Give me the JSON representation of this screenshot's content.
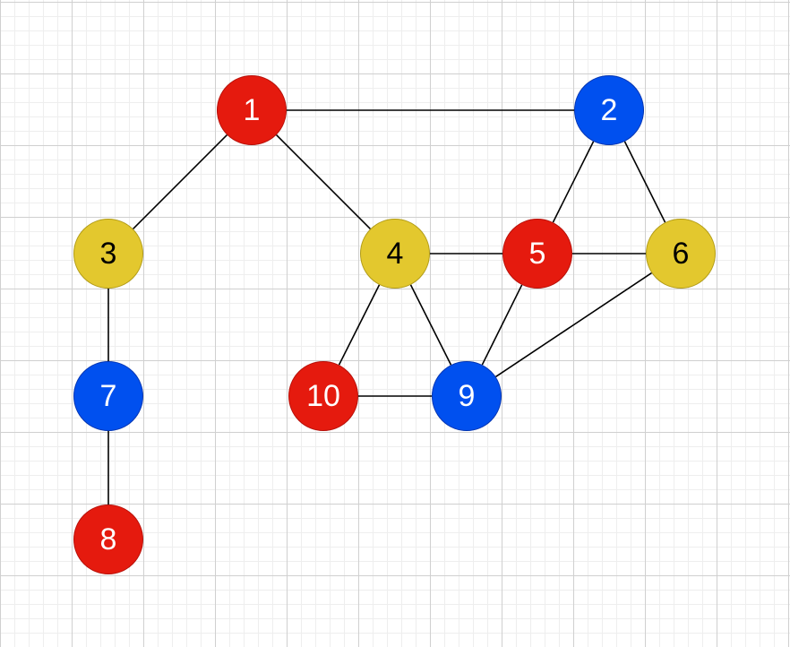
{
  "colors": {
    "red": {
      "fill": "#e51a0e",
      "stroke": "#b50f08",
      "text": "#ffffff"
    },
    "blue": {
      "fill": "#0050ef",
      "stroke": "#0033b0",
      "text": "#ffffff"
    },
    "yellow": {
      "fill": "#e3c82e",
      "stroke": "#b09a16",
      "text": "#000000"
    },
    "edge": "#000000"
  },
  "graph": {
    "nodes": [
      {
        "id": "1",
        "label": "1",
        "color": "red"
      },
      {
        "id": "2",
        "label": "2",
        "color": "blue"
      },
      {
        "id": "3",
        "label": "3",
        "color": "yellow"
      },
      {
        "id": "4",
        "label": "4",
        "color": "yellow"
      },
      {
        "id": "5",
        "label": "5",
        "color": "red"
      },
      {
        "id": "6",
        "label": "6",
        "color": "yellow"
      },
      {
        "id": "7",
        "label": "7",
        "color": "blue"
      },
      {
        "id": "8",
        "label": "8",
        "color": "red"
      },
      {
        "id": "9",
        "label": "9",
        "color": "blue"
      },
      {
        "id": "10",
        "label": "10",
        "color": "red"
      }
    ],
    "edges": [
      {
        "from": "1",
        "to": "2"
      },
      {
        "from": "1",
        "to": "3"
      },
      {
        "from": "1",
        "to": "4"
      },
      {
        "from": "2",
        "to": "5"
      },
      {
        "from": "2",
        "to": "6"
      },
      {
        "from": "3",
        "to": "7"
      },
      {
        "from": "7",
        "to": "8"
      },
      {
        "from": "4",
        "to": "5"
      },
      {
        "from": "5",
        "to": "6"
      },
      {
        "from": "4",
        "to": "9"
      },
      {
        "from": "5",
        "to": "9"
      },
      {
        "from": "4",
        "to": "10"
      },
      {
        "from": "10",
        "to": "9"
      },
      {
        "from": "6",
        "to": "9"
      }
    ]
  }
}
